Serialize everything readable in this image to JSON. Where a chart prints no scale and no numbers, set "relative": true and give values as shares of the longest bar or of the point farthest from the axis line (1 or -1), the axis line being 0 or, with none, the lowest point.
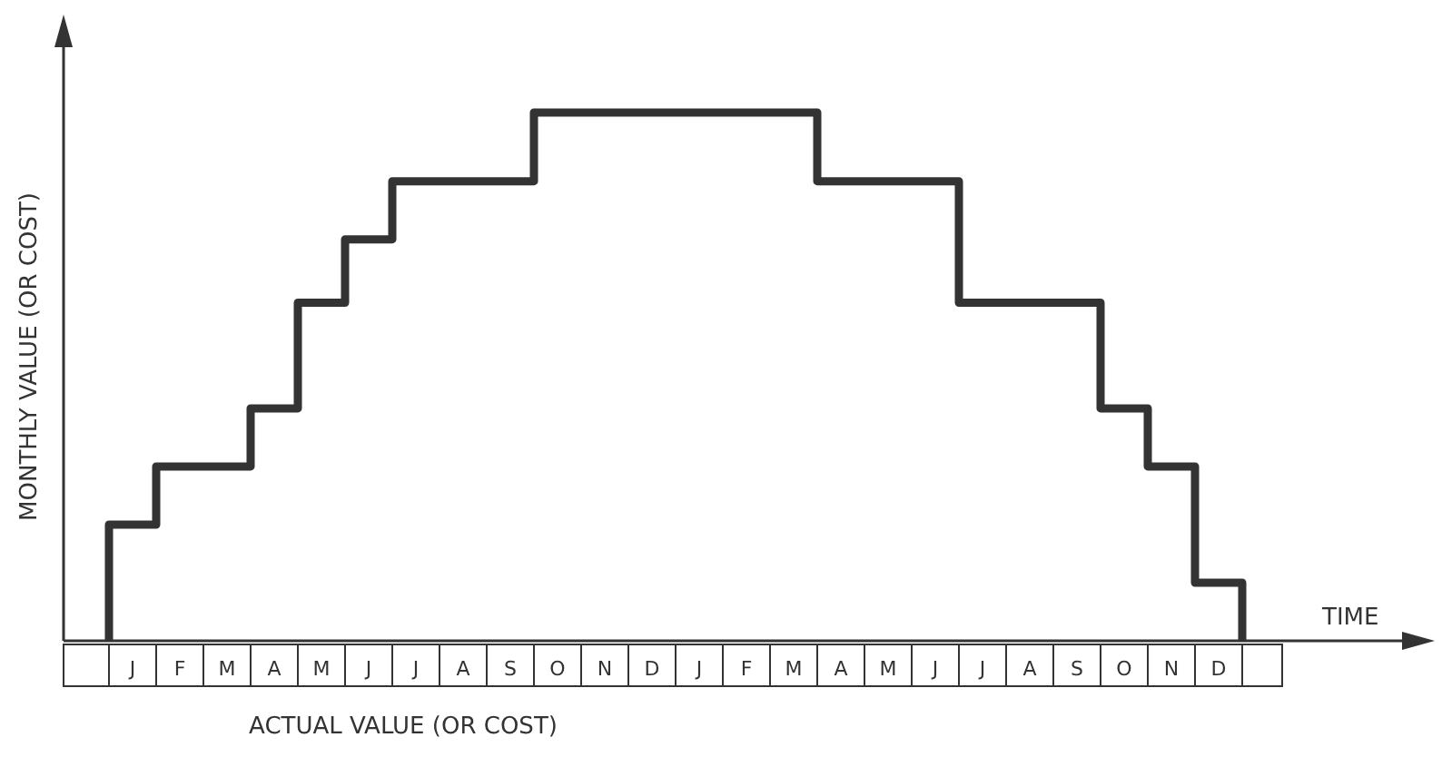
{
  "chart_data": {
    "type": "step",
    "relative": true,
    "xlabel": "TIME",
    "ylabel": "MONTHLY VALUE (OR COST)",
    "annotations": [
      "ACTUAL VALUE (OR COST)"
    ],
    "categories": [
      "J",
      "F",
      "M",
      "A",
      "M",
      "J",
      "J",
      "A",
      "S",
      "O",
      "N",
      "D",
      "J",
      "F",
      "M",
      "A",
      "M",
      "J",
      "J",
      "A",
      "S",
      "O",
      "N",
      "D"
    ],
    "values": [
      0.22,
      0.33,
      0.33,
      0.44,
      0.64,
      0.76,
      0.87,
      0.87,
      0.87,
      1,
      1,
      1,
      1,
      1,
      1,
      0.87,
      0.87,
      0.87,
      0.64,
      0.64,
      0.64,
      0.44,
      0.33,
      0.11
    ],
    "color": "#333333"
  }
}
